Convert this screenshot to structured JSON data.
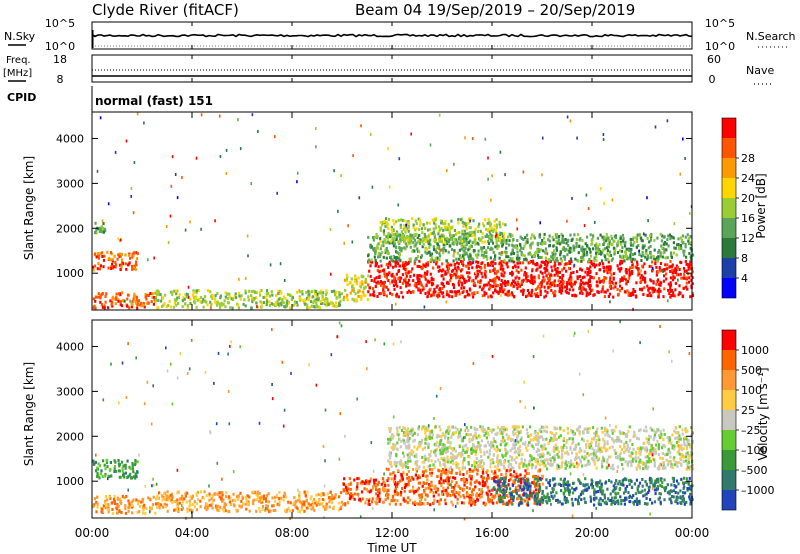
{
  "header": {
    "station": "Clyde River (fitACF)",
    "beam_dates": "Beam 04  19/Sep/2019 – 20/Sep/2019"
  },
  "nsky_panel": {
    "left_label": "N.Sky",
    "right_label": "N.Search",
    "left_ticks": [
      "10^5",
      "10^0"
    ],
    "right_ticks": [
      "10^5",
      "10^0"
    ]
  },
  "freq_panel": {
    "left_label_1": "Freq.",
    "left_label_2": "[MHz]",
    "right_label": "Nave",
    "left_ticks": [
      "18",
      "8"
    ],
    "right_ticks": [
      "60",
      "0"
    ]
  },
  "cpid": {
    "label": "CPID",
    "value": "normal (fast) 151"
  },
  "xaxis": {
    "ticks": [
      "00:00",
      "04:00",
      "08:00",
      "12:00",
      "16:00",
      "20:00",
      "00:00"
    ],
    "label": "Time UT"
  },
  "chart_data": [
    {
      "type": "heatmap",
      "name": "power-panel",
      "ylabel": "Slant Range [km]",
      "yticks": [
        "1000",
        "2000",
        "3000",
        "4000"
      ],
      "ylim": [
        180,
        4590
      ],
      "xlim_hours": [
        0,
        24
      ],
      "colorbar": {
        "label": "Power [dB]",
        "tick_labels": [
          "4",
          "8",
          "12",
          "16",
          "20",
          "24",
          "28"
        ],
        "colors": [
          "#0000ff",
          "#1c3fa8",
          "#2a7a3c",
          "#5aa55a",
          "#9acd32",
          "#ffd700",
          "#ff9900",
          "#ff5500",
          "#ff0000"
        ]
      },
      "regions": [
        {
          "x": [
            0.0,
            1.8
          ],
          "y": [
            1100,
            1500
          ],
          "class": 7
        },
        {
          "x": [
            0.0,
            0.5
          ],
          "y": [
            1900,
            2150
          ],
          "class": 3
        },
        {
          "x": [
            0.0,
            2.5
          ],
          "y": [
            250,
            600
          ],
          "class": 7
        },
        {
          "x": [
            2.5,
            10.0
          ],
          "y": [
            250,
            650
          ],
          "class": 4
        },
        {
          "x": [
            10.0,
            11.0
          ],
          "y": [
            400,
            1000
          ],
          "class": 5
        },
        {
          "x": [
            11.0,
            24.0
          ],
          "y": [
            500,
            1300
          ],
          "class": 8
        },
        {
          "x": [
            11.0,
            24.0
          ],
          "y": [
            1300,
            1900
          ],
          "class": 3
        },
        {
          "x": [
            11.5,
            16.5
          ],
          "y": [
            1700,
            2250
          ],
          "class": 4
        }
      ]
    },
    {
      "type": "heatmap",
      "name": "velocity-panel",
      "ylabel": "Slant Range [km]",
      "yticks": [
        "1000",
        "2000",
        "3000",
        "4000"
      ],
      "ylim": [
        180,
        4590
      ],
      "xlim_hours": [
        0,
        24
      ],
      "colorbar": {
        "label": "Velocity [m s⁻¹]",
        "tick_labels": [
          "1000",
          "500",
          "100",
          "25",
          "–25",
          "–100",
          "–500",
          "–1000"
        ],
        "colors": [
          "#2244bb",
          "#2f7a6a",
          "#3a9a3a",
          "#66cc33",
          "#c8c8c0",
          "#ffcc44",
          "#ff9933",
          "#ff6600",
          "#ff0000"
        ]
      },
      "regions": [
        {
          "x": [
            0.0,
            1.8
          ],
          "y": [
            1100,
            1500
          ],
          "class": 2
        },
        {
          "x": [
            0.0,
            2.5
          ],
          "y": [
            300,
            700
          ],
          "class": 6
        },
        {
          "x": [
            2.5,
            10.0
          ],
          "y": [
            350,
            800
          ],
          "class": 6
        },
        {
          "x": [
            10.0,
            11.8
          ],
          "y": [
            500,
            1100
          ],
          "class": 7
        },
        {
          "x": [
            11.8,
            18.0
          ],
          "y": [
            500,
            1300
          ],
          "class": 7
        },
        {
          "x": [
            11.8,
            24.0
          ],
          "y": [
            1300,
            2250
          ],
          "class": 4
        },
        {
          "x": [
            16.0,
            24.0
          ],
          "y": [
            500,
            1100
          ],
          "class": 1
        }
      ]
    }
  ]
}
